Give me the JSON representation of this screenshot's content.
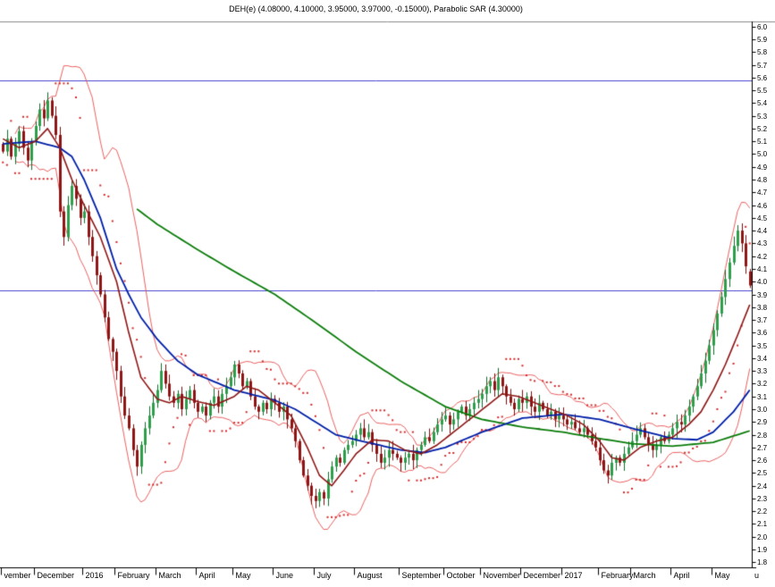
{
  "title": "DEH(e) (4.08000, 4.10000, 3.95000, 3.97000, -0.15000), Parabolic SAR (4.30000)",
  "colors": {
    "background": "#ffffff",
    "up_candle": "#2f9e4c",
    "up_candle_border": "#0f6e2b",
    "down_candle": "#8e1616",
    "down_candle_border": "#7a1010",
    "bollinger_band": "#e85050",
    "sar_dots": "#d42a2a",
    "ma_short": "#8e1616",
    "ma_medium": "#001fa8",
    "ma_long": "#0b7d0b",
    "horizontal_line": "#4747cf",
    "axis": "#000000",
    "frame": "#8c8c8c"
  },
  "y_axis": {
    "min": 1.8,
    "max": 6.0,
    "step": 0.1,
    "decimals": 1,
    "side": "right"
  },
  "x_axis": {
    "labels": [
      {
        "label": "vember",
        "idx": 0
      },
      {
        "label": "December",
        "idx": 8
      },
      {
        "label": "2016",
        "idx": 20
      },
      {
        "label": "February",
        "idx": 28
      },
      {
        "label": "March",
        "idx": 38
      },
      {
        "label": "April",
        "idx": 48
      },
      {
        "label": "May",
        "idx": 57
      },
      {
        "label": "June",
        "idx": 67
      },
      {
        "label": "July",
        "idx": 77
      },
      {
        "label": "August",
        "idx": 87
      },
      {
        "label": "September",
        "idx": 98
      },
      {
        "label": "October",
        "idx": 109
      },
      {
        "label": "November",
        "idx": 118
      },
      {
        "label": "December",
        "idx": 128
      },
      {
        "label": "2017",
        "idx": 138
      },
      {
        "label": "February",
        "idx": 147
      },
      {
        "label": "March",
        "idx": 155
      },
      {
        "label": "April",
        "idx": 165
      },
      {
        "label": "May",
        "idx": 175
      }
    ],
    "edge_label": "u"
  },
  "horizontal_lines": [
    5.58,
    3.93
  ],
  "chart_data": {
    "type": "candlestick",
    "instrument": "DEH(e)",
    "title": "DEH(e) (4.08000, 4.10000, 3.95000, 3.97000, -0.15000), Parabolic SAR (4.30000)",
    "ylim": [
      1.8,
      6.0
    ],
    "legend_position": "none",
    "grid": false,
    "last_candle": {
      "open": 4.08,
      "high": 4.1,
      "low": 3.95,
      "close": 3.97,
      "change": -0.15
    },
    "parabolic_sar_last": 4.3,
    "close": [
      5.02,
      5.12,
      4.98,
      5.08,
      5.18,
      5.05,
      4.95,
      5.1,
      5.22,
      5.35,
      5.28,
      5.42,
      5.3,
      5.15,
      4.55,
      4.35,
      4.6,
      4.75,
      4.65,
      4.5,
      4.55,
      4.35,
      4.2,
      4.05,
      3.9,
      3.72,
      3.55,
      3.45,
      3.3,
      3.1,
      2.95,
      2.85,
      2.68,
      2.55,
      2.72,
      2.85,
      2.95,
      3.05,
      3.15,
      3.3,
      3.2,
      3.1,
      3.05,
      3.12,
      3.0,
      3.08,
      3.15,
      3.05,
      2.98,
      3.02,
      2.95,
      3.05,
      3.1,
      3.02,
      3.12,
      3.18,
      3.25,
      3.35,
      3.28,
      3.18,
      3.22,
      3.1,
      3.02,
      2.98,
      3.05,
      3.0,
      3.08,
      3.05,
      2.98,
      3.02,
      2.92,
      2.85,
      2.75,
      2.6,
      2.48,
      2.4,
      2.32,
      2.28,
      2.35,
      2.3,
      2.45,
      2.55,
      2.62,
      2.58,
      2.68,
      2.72,
      2.75,
      2.8,
      2.85,
      2.78,
      2.82,
      2.72,
      2.65,
      2.58,
      2.62,
      2.68,
      2.65,
      2.62,
      2.58,
      2.62,
      2.65,
      2.6,
      2.68,
      2.72,
      2.78,
      2.75,
      2.82,
      2.88,
      2.92,
      2.95,
      2.88,
      2.92,
      2.98,
      3.02,
      2.95,
      3.0,
      3.05,
      3.08,
      3.12,
      3.18,
      3.22,
      3.15,
      3.25,
      3.18,
      3.1,
      3.05,
      3.0,
      3.08,
      3.05,
      3.1,
      3.02,
      2.98,
      3.05,
      3.0,
      2.95,
      2.98,
      2.92,
      2.95,
      2.92,
      2.88,
      2.9,
      2.85,
      2.82,
      2.85,
      2.8,
      2.75,
      2.7,
      2.6,
      2.52,
      2.48,
      2.58,
      2.62,
      2.58,
      2.65,
      2.7,
      2.75,
      2.8,
      2.85,
      2.78,
      2.72,
      2.68,
      2.72,
      2.78,
      2.75,
      2.8,
      2.85,
      2.9,
      2.88,
      2.95,
      3.02,
      3.1,
      3.18,
      3.28,
      3.38,
      3.5,
      3.62,
      3.75,
      3.88,
      4.02,
      4.15,
      4.28,
      4.4,
      4.3,
      4.12,
      3.97
    ],
    "overlays": {
      "ma_long_anchors": [
        [
          33,
          4.57
        ],
        [
          38,
          4.45
        ],
        [
          48,
          4.25
        ],
        [
          57,
          4.08
        ],
        [
          67,
          3.9
        ],
        [
          77,
          3.68
        ],
        [
          87,
          3.45
        ],
        [
          98,
          3.22
        ],
        [
          109,
          3.02
        ],
        [
          118,
          2.92
        ],
        [
          128,
          2.86
        ],
        [
          138,
          2.82
        ],
        [
          147,
          2.77
        ],
        [
          155,
          2.73
        ],
        [
          165,
          2.71
        ],
        [
          175,
          2.74
        ],
        [
          184,
          2.83
        ]
      ],
      "ma_medium_anchors": [
        [
          0,
          5.08
        ],
        [
          8,
          5.1
        ],
        [
          14,
          5.05
        ],
        [
          17,
          4.98
        ],
        [
          20,
          4.8
        ],
        [
          24,
          4.5
        ],
        [
          28,
          4.1
        ],
        [
          31,
          3.9
        ],
        [
          34,
          3.72
        ],
        [
          38,
          3.55
        ],
        [
          43,
          3.38
        ],
        [
          48,
          3.27
        ],
        [
          57,
          3.15
        ],
        [
          67,
          3.07
        ],
        [
          72,
          3.0
        ],
        [
          77,
          2.9
        ],
        [
          82,
          2.8
        ],
        [
          87,
          2.76
        ],
        [
          98,
          2.68
        ],
        [
          104,
          2.66
        ],
        [
          109,
          2.7
        ],
        [
          118,
          2.82
        ],
        [
          128,
          2.93
        ],
        [
          138,
          2.96
        ],
        [
          147,
          2.92
        ],
        [
          155,
          2.85
        ],
        [
          165,
          2.77
        ],
        [
          171,
          2.76
        ],
        [
          175,
          2.82
        ],
        [
          180,
          2.98
        ],
        [
          184,
          3.15
        ]
      ],
      "ma_short_anchors": [
        [
          0,
          5.12
        ],
        [
          4,
          5.05
        ],
        [
          8,
          5.1
        ],
        [
          11,
          5.2
        ],
        [
          14,
          5.05
        ],
        [
          17,
          4.8
        ],
        [
          20,
          4.6
        ],
        [
          24,
          4.35
        ],
        [
          28,
          4.0
        ],
        [
          31,
          3.6
        ],
        [
          34,
          3.25
        ],
        [
          38,
          3.08
        ],
        [
          41,
          3.05
        ],
        [
          44,
          3.1
        ],
        [
          48,
          3.06
        ],
        [
          52,
          3.03
        ],
        [
          57,
          3.1
        ],
        [
          60,
          3.18
        ],
        [
          63,
          3.15
        ],
        [
          67,
          3.05
        ],
        [
          71,
          2.95
        ],
        [
          75,
          2.7
        ],
        [
          78,
          2.48
        ],
        [
          81,
          2.4
        ],
        [
          84,
          2.52
        ],
        [
          87,
          2.65
        ],
        [
          91,
          2.76
        ],
        [
          95,
          2.75
        ],
        [
          99,
          2.68
        ],
        [
          103,
          2.65
        ],
        [
          107,
          2.72
        ],
        [
          111,
          2.82
        ],
        [
          115,
          2.92
        ],
        [
          119,
          3.02
        ],
        [
          123,
          3.12
        ],
        [
          127,
          3.1
        ],
        [
          131,
          3.05
        ],
        [
          135,
          3.0
        ],
        [
          139,
          2.95
        ],
        [
          143,
          2.88
        ],
        [
          147,
          2.75
        ],
        [
          150,
          2.62
        ],
        [
          153,
          2.6
        ],
        [
          157,
          2.7
        ],
        [
          161,
          2.75
        ],
        [
          165,
          2.78
        ],
        [
          169,
          2.88
        ],
        [
          172,
          2.98
        ],
        [
          175,
          3.15
        ],
        [
          178,
          3.35
        ],
        [
          181,
          3.58
        ],
        [
          184,
          3.82
        ]
      ],
      "bollinger": {
        "window": 12,
        "mult": 2
      },
      "sar_trend_window": 9
    }
  }
}
